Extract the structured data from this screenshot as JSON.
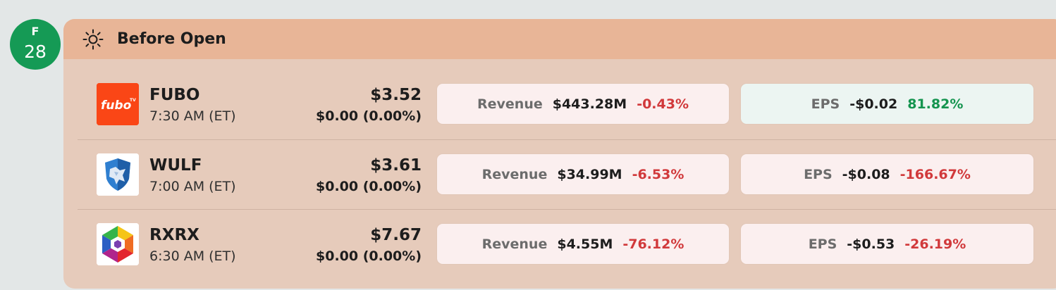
{
  "date": {
    "dow": "F",
    "day": "28"
  },
  "session": {
    "title": "Before Open",
    "icon": "sun-icon"
  },
  "rows": [
    {
      "ticker": "FUBO",
      "logo": {
        "icon": "fubo-logo",
        "text": "fubo",
        "sup": "TV",
        "bg": "#fa4616"
      },
      "time": "7:30 AM (ET)",
      "price": "$3.52",
      "change": "$0.00 (0.00%)",
      "revenue": {
        "label": "Revenue",
        "value": "$443.28M",
        "surprise": "-0.43%"
      },
      "eps": {
        "label": "EPS",
        "value": "-$0.02",
        "surprise": "81.82%"
      }
    },
    {
      "ticker": "WULF",
      "logo": {
        "icon": "wulf-shield-logo",
        "bg": "#ffffff"
      },
      "time": "7:00 AM (ET)",
      "price": "$3.61",
      "change": "$0.00 (0.00%)",
      "revenue": {
        "label": "Revenue",
        "value": "$34.99M",
        "surprise": "-6.53%"
      },
      "eps": {
        "label": "EPS",
        "value": "-$0.08",
        "surprise": "-166.67%"
      }
    },
    {
      "ticker": "RXRX",
      "logo": {
        "icon": "rxrx-hexagon-logo",
        "bg": "#ffffff"
      },
      "time": "6:30 AM (ET)",
      "price": "$7.67",
      "change": "$0.00 (0.00%)",
      "revenue": {
        "label": "Revenue",
        "value": "$4.55M",
        "surprise": "-76.12%"
      },
      "eps": {
        "label": "EPS",
        "value": "-$0.53",
        "surprise": "-26.19%"
      }
    }
  ],
  "colors": {
    "positive": "#14944f",
    "negative": "#d1393b",
    "badge": "#159a55",
    "header": "#e8b597",
    "panel": "#e6cbbb"
  }
}
